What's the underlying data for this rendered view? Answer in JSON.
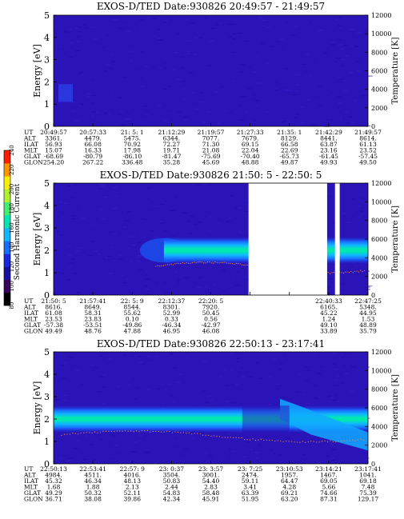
{
  "chart_data": {
    "type": "heatmap",
    "colorbar": {
      "label": "Second Harmonic Current",
      "ticks": [
        "80",
        "100",
        "120",
        "140",
        "160",
        "180",
        "200",
        "220",
        "240"
      ],
      "colors": [
        "#000000",
        "#3a0060",
        "#1a10a0",
        "#1828e0",
        "#1870ff",
        "#10b8ff",
        "#00e8b0",
        "#40f070",
        "#b0f030",
        "#f8f000",
        "#ff9800",
        "#ff2000"
      ]
    },
    "panels": [
      {
        "title": "EXOS-D/TED  Date:930826  20:49:57 - 21:49:57",
        "ylabel_left": "Energy [eV]",
        "ylabel_right": "Temperature [K]",
        "ylim": [
          0,
          5
        ],
        "yticks_left": [
          "0",
          "1",
          "2",
          "3",
          "4",
          "5"
        ],
        "yticks_right": [
          "0",
          "2000",
          "4000",
          "6000",
          "8000",
          "10000",
          "12000"
        ],
        "band": {
          "present": false
        },
        "gaps": [],
        "table": {
          "labels": [
            "UT",
            "ALT",
            "ILAT",
            "MLT",
            "GLAT",
            "GLON"
          ],
          "columns": [
            [
              "20:49:57",
              "3361.",
              "56.93",
              "15.07",
              "-68.69",
              "254.20"
            ],
            [
              "20:57:33",
              "4479.",
              "66.08",
              "16.33",
              "-80.79",
              "267.22"
            ],
            [
              "21: 5: 1",
              "5475.",
              "70.92",
              "17.98",
              "-86.10",
              "336.48"
            ],
            [
              "21:12:29",
              "6344.",
              "72.27",
              "19.71",
              "-81.47",
              "35.28"
            ],
            [
              "21:19:57",
              "7077.",
              "71.30",
              "21.08",
              "-75.69",
              "45.69"
            ],
            [
              "21:27:33",
              "7679.",
              "69.15",
              "22.04",
              "-70.40",
              "48.88"
            ],
            [
              "21:35: 1",
              "8129.",
              "66.58",
              "22.69",
              "-65.73",
              "49.87"
            ],
            [
              "21:42:29",
              "8441.",
              "63.87",
              "23.16",
              "-61.45",
              "49.93"
            ],
            [
              "21:49:57",
              "8614.",
              "61.13",
              "23.52",
              "-57.45",
              "49.50"
            ]
          ]
        }
      },
      {
        "title": "EXOS-D/TED   Date:930826  21:50: 5 - 22:50: 5",
        "ylabel_left": "Energy [eV]",
        "ylabel_right": "Temperature [K]",
        "ylim": [
          0,
          5
        ],
        "yticks_left": [
          "0",
          "1",
          "2",
          "3",
          "4",
          "5"
        ],
        "yticks_right": [
          "0",
          "2000",
          "4000",
          "6000",
          "8000",
          "10000",
          "12000"
        ],
        "band": {
          "present": true,
          "center_eV": 2.0,
          "start_fraction": 0.3
        },
        "gaps": [
          [
            0.62,
            0.87
          ],
          [
            0.895,
            0.91
          ]
        ],
        "table": {
          "labels": [
            "UT",
            "ALT",
            "ILAT",
            "MLT",
            "GLAT",
            "GLON"
          ],
          "columns": [
            [
              "21:50: 5",
              "8616.",
              "61.08",
              "23.53",
              "-57.38",
              "49.49"
            ],
            [
              "21:57:41",
              "8649.",
              "58.31",
              "23.83",
              "-53.51",
              "48.76"
            ],
            [
              "22: 5: 9",
              "8544.",
              "55.62",
              "0.10",
              "-49.86",
              "47.88"
            ],
            [
              "22:12:37",
              "8301.",
              "52.99",
              "0.33",
              "-46.34",
              "46.95"
            ],
            [
              "22:20: 5",
              "7920.",
              "50.45",
              "0.56",
              "-42.97",
              "46.08"
            ],
            [
              "",
              "",
              "",
              "",
              "",
              ""
            ],
            [
              "",
              "",
              "",
              "",
              "",
              ""
            ],
            [
              "22:40:33",
              "6165.",
              "45.22",
              "1.24",
              "49.10",
              "33.89"
            ],
            [
              "22:47:25",
              "5348.",
              "44.95",
              "1.53",
              "48.89",
              "35.79"
            ]
          ]
        }
      },
      {
        "title": "EXOS-D/TED   Date:930826  22:50:13 - 23:17:41",
        "ylabel_left": "Energy [eV]",
        "ylabel_right": "Temperature [K]",
        "ylim": [
          0,
          5
        ],
        "yticks_left": [
          "0",
          "1",
          "2",
          "3",
          "4",
          "5"
        ],
        "yticks_right": [
          "0",
          "2000",
          "4000",
          "6000",
          "8000",
          "10000",
          "12000"
        ],
        "band": {
          "present": true,
          "center_eV": 2.0,
          "start_fraction": 0.0
        },
        "gaps": [],
        "table": {
          "labels": [
            "UT",
            "ALT",
            "ILAT",
            "MLT",
            "GLAT",
            "GLON"
          ],
          "columns": [
            [
              "22:50:13",
              "4984.",
              "45.32",
              "1.68",
              "49.29",
              "36.71"
            ],
            [
              "22:53:41",
              "4511.",
              "46.34",
              "1.88",
              "50.32",
              "38.08"
            ],
            [
              "22:57: 9",
              "4016.",
              "48.13",
              "2.13",
              "52.11",
              "39.86"
            ],
            [
              "23: 0:37",
              "3504.",
              "50.83",
              "2.44",
              "54.83",
              "42.34"
            ],
            [
              "23: 3:57",
              "3001.",
              "54.40",
              "2.83",
              "58.48",
              "45.91"
            ],
            [
              "23: 7:25",
              "2474.",
              "59.11",
              "3.41",
              "63.39",
              "51.95"
            ],
            [
              "23:10:53",
              "1957.",
              "64.47",
              "4.28",
              "69.21",
              "63.20"
            ],
            [
              "23:14:21",
              "1467.",
              "69.05",
              "5.66",
              "74.66",
              "87.31"
            ],
            [
              "23:17:41",
              "1041.",
              "69.18",
              "7.48",
              "75.39",
              "129.17"
            ]
          ]
        }
      }
    ]
  }
}
